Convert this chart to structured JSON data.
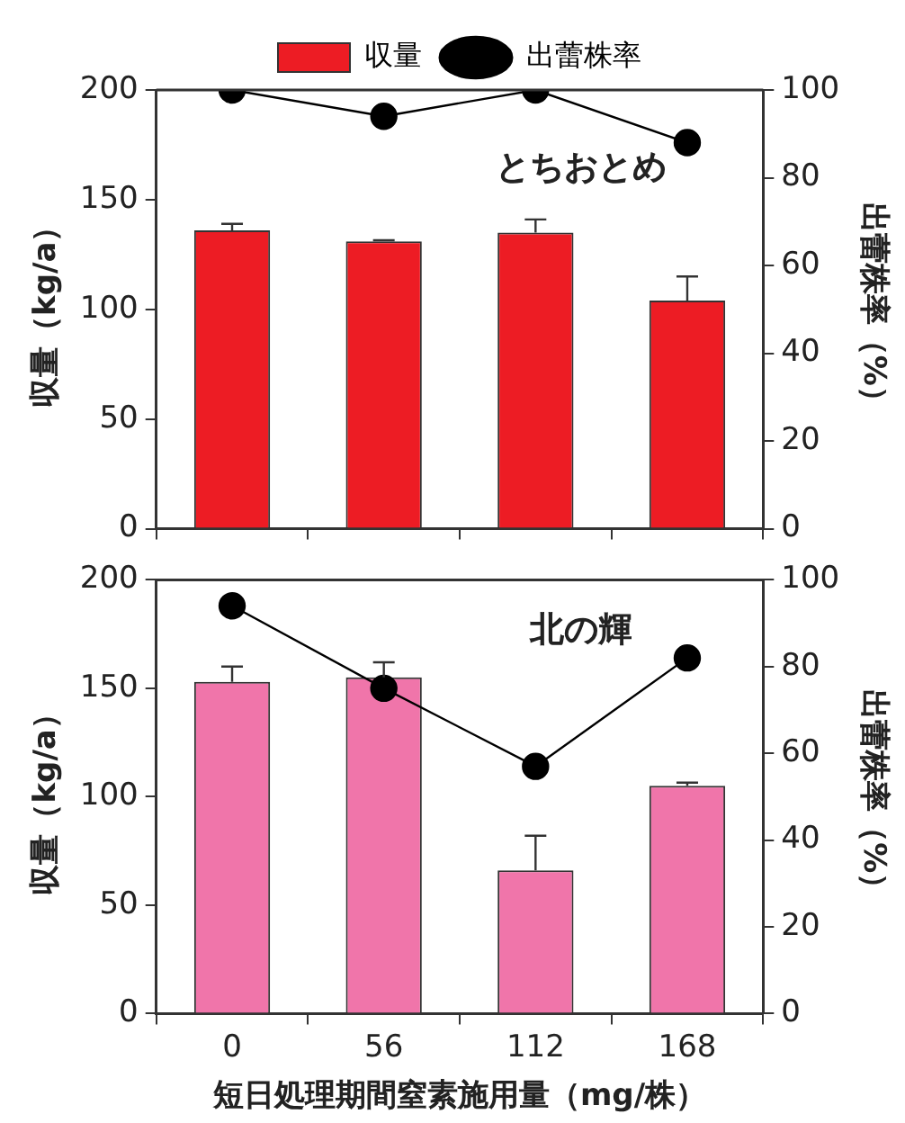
{
  "chart_data": [
    {
      "type": "bar",
      "categories": [
        "0",
        "56",
        "112",
        "168"
      ],
      "ylabel": "収量（kg/a）",
      "y2label": "出蕾株率（%）",
      "ylim": [
        0,
        200
      ],
      "yticks": [
        0,
        50,
        100,
        150,
        200
      ],
      "y2lim": [
        0,
        100
      ],
      "y2ticks": [
        0,
        20,
        40,
        60,
        80,
        100
      ],
      "tick_labels": "y",
      "legend": "top",
      "marker": "circle",
      "annotations": [
        "とちおとめ"
      ],
      "series": [
        {
          "name": "収量",
          "color": "#ed1c24",
          "values": [
            136,
            131,
            135,
            104
          ],
          "errors": [
            3,
            0.5,
            6,
            11
          ]
        },
        {
          "name": "出蕾株率",
          "type": "line",
          "axis": "y2",
          "color": "#000000",
          "values": [
            100,
            94,
            100,
            88
          ]
        }
      ]
    },
    {
      "type": "bar",
      "categories": [
        "0",
        "56",
        "112",
        "168"
      ],
      "xlabel": "短日処理期間窒素施用量（mg/株）",
      "ylabel": "収量（kg/a）",
      "y2label": "出蕾株率（%）",
      "ylim": [
        0,
        200
      ],
      "yticks": [
        0,
        50,
        100,
        150,
        200
      ],
      "y2lim": [
        0,
        100
      ],
      "y2ticks": [
        0,
        20,
        40,
        60,
        80,
        100
      ],
      "marker": "circle",
      "annotations": [
        "北の輝"
      ],
      "series": [
        {
          "color": "#f075aa",
          "values": [
            153,
            155,
            66,
            105
          ],
          "errors": [
            7,
            7,
            16,
            1.5
          ]
        },
        {
          "type": "line",
          "axis": "y2",
          "color": "#000000",
          "values": [
            94,
            75,
            57,
            82
          ]
        }
      ]
    }
  ]
}
